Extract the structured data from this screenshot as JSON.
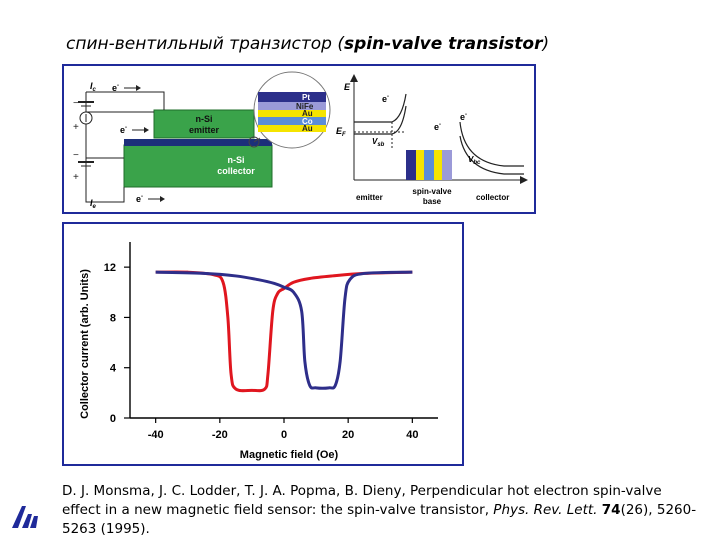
{
  "title": {
    "prefix": "спин-вентильный транзистор (",
    "emph": "spin-valve transistor",
    "suffix": ")"
  },
  "device": {
    "ic_label": "I",
    "ic_sub": "c",
    "ie_label": "I",
    "ie_sub": "e",
    "electron": "e",
    "electron_sup": "-",
    "emitter_label_1": "n-Si",
    "emitter_label_2": "emitter",
    "collector_label_1": "n-Si",
    "collector_label_2": "collector",
    "stack_layers": [
      "Pt",
      "NiFe",
      "Au",
      "Co",
      "Au"
    ]
  },
  "band": {
    "e_axis": "E",
    "ef_label": "E",
    "ef_sub": "F",
    "vsb_label": "V",
    "vsb_sub": "sb",
    "vbc_label": "V",
    "vbc_sub": "bc",
    "emitter": "emitter",
    "base_1": "spin-valve",
    "base_2": "base",
    "collector": "collector"
  },
  "chart_data": {
    "type": "line",
    "xlabel": "Magnetic field (Oe)",
    "ylabel": "Collector current (arb. Units)",
    "xlim": [
      -48,
      48
    ],
    "ylim": [
      0,
      14
    ],
    "xticks": [
      -40,
      -20,
      0,
      20,
      40
    ],
    "yticks": [
      0,
      4,
      8,
      12
    ],
    "series": [
      {
        "color": "#e0161f",
        "x": [
          -40,
          -30,
          -22,
          -19,
          -17.5,
          -16.5,
          -15,
          -10,
          -6,
          -5,
          -3.5,
          -2,
          0,
          3,
          8,
          15,
          25,
          40
        ],
        "y": [
          11.6,
          11.6,
          11.4,
          10.8,
          8,
          3.5,
          2.3,
          2.2,
          2.3,
          3.5,
          8.5,
          9.9,
          10.3,
          10.8,
          11.1,
          11.3,
          11.5,
          11.6
        ]
      },
      {
        "color": "#2e2e8a",
        "x": [
          -40,
          -25,
          -15,
          -8,
          -3,
          0,
          3,
          5.5,
          6.5,
          8,
          10,
          14,
          16,
          17.5,
          19,
          20.5,
          25,
          40
        ],
        "y": [
          11.6,
          11.5,
          11.3,
          11.0,
          10.7,
          10.4,
          10.0,
          8.5,
          4.5,
          2.6,
          2.4,
          2.4,
          2.6,
          4.5,
          9.5,
          11.0,
          11.5,
          11.6
        ]
      }
    ]
  },
  "reference": {
    "authors": "D. J. Monsma, J. C. Lodder, T. J. A. Popma, B. Dieny, Perpendicular hot electron spin-valve effect in a new magnetic field sensor: the spin-valve transistor,",
    "journal": "Phys. Rev. Lett.",
    "volume": "74",
    "pages": "(26), 5260-5263 (1995)."
  }
}
